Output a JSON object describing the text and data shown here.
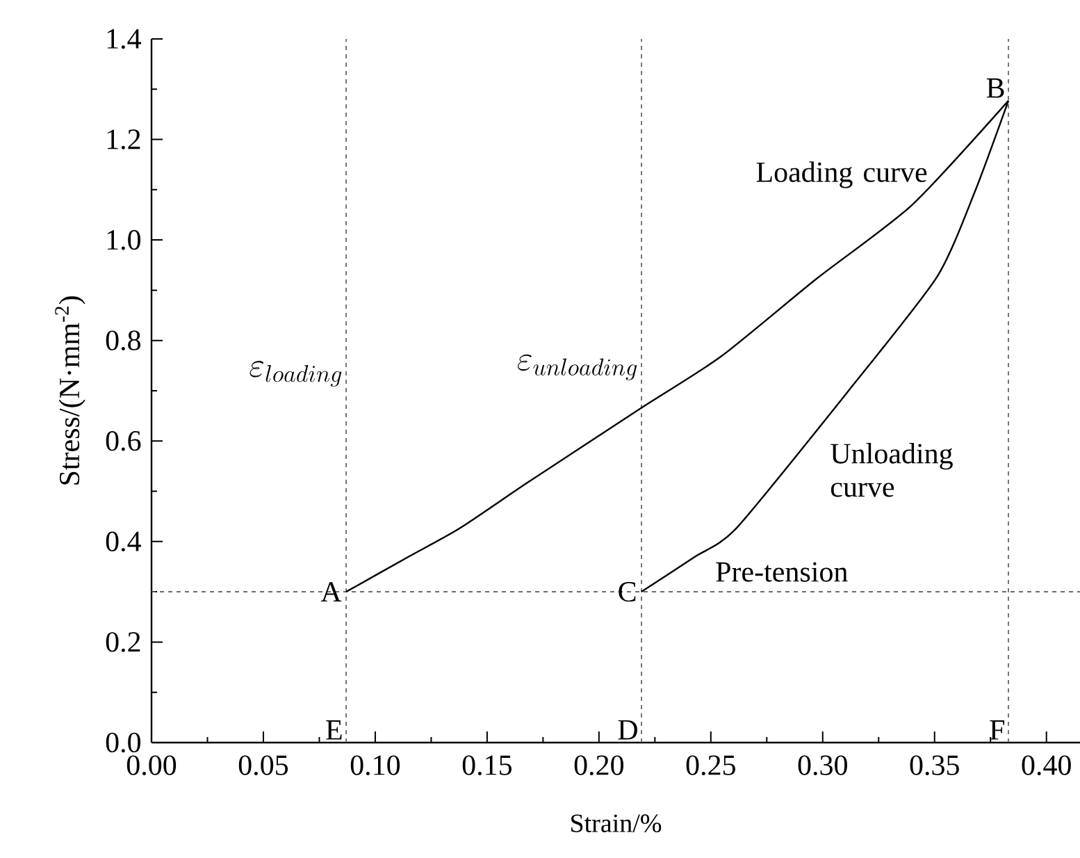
{
  "chart_data": {
    "type": "line",
    "xlabel": "Strain/%",
    "ylabel": "Stress/(N·mm$^{-2}$)",
    "xlim": [
      0,
      0.415
    ],
    "ylim": [
      0,
      1.4
    ],
    "xticks": [
      {
        "value": 0,
        "label": "0.00"
      },
      {
        "value": 0.05,
        "label": "0.05"
      },
      {
        "value": 0.1,
        "label": "0.10"
      },
      {
        "value": 0.15,
        "label": "0.15"
      },
      {
        "value": 0.2,
        "label": "0.20"
      },
      {
        "value": 0.25,
        "label": "0.25"
      },
      {
        "value": 0.3,
        "label": "0.30"
      },
      {
        "value": 0.35,
        "label": "0.35"
      },
      {
        "value": 0.4,
        "label": "0.40"
      }
    ],
    "yticks": [
      {
        "value": 0,
        "label": "0.0"
      },
      {
        "value": 0.2,
        "label": "0.2"
      },
      {
        "value": 0.4,
        "label": "0.4"
      },
      {
        "value": 0.6,
        "label": "0.6"
      },
      {
        "value": 0.8,
        "label": "0.8"
      },
      {
        "value": 1.0,
        "label": "1.0"
      },
      {
        "value": 1.2,
        "label": "1.2"
      },
      {
        "value": 1.4,
        "label": "1.4"
      }
    ],
    "series": [
      {
        "color": "#000000",
        "x": [
          0.087,
          0.115,
          0.138,
          0.169,
          0.219,
          0.2545,
          0.297,
          0.34,
          0.383
        ],
        "values": [
          0.3,
          0.37,
          0.427,
          0.52,
          0.666,
          0.768,
          0.922,
          1.07,
          1.277
        ]
      },
      {
        "color": "#000000",
        "x": [
          0.219,
          0.243,
          0.2615,
          0.311,
          0.351,
          0.368,
          0.383
        ],
        "values": [
          0.3,
          0.37,
          0.427,
          0.697,
          0.926,
          1.096,
          1.277
        ]
      }
    ],
    "ref_lines": [
      {
        "axis": "x",
        "value": 0.087,
        "label": "E",
        "line_style": "dashed",
        "color": "#555555"
      },
      {
        "axis": "x",
        "value": 0.219,
        "label": "D",
        "line_style": "dashed",
        "color": "#555555"
      },
      {
        "axis": "x",
        "value": 0.383,
        "label": "F",
        "line_style": "dashed",
        "color": "#555555"
      },
      {
        "axis": "y",
        "value": 0.3,
        "line_style": "dashed",
        "color": "#555555"
      }
    ],
    "annotations": [
      {
        "text": "A",
        "x": 0.087,
        "y": 0.3
      },
      {
        "text": "B",
        "x": 0.383,
        "y": 1.277
      },
      {
        "text": "C",
        "x": 0.219,
        "y": 0.3
      },
      "Loading curve",
      "Unloading curve",
      {
        "text": "Pre-tension",
        "x": 0.245,
        "y": 0.3
      },
      {
        "text": "\\varepsilon_{loading}",
        "x": 0.087,
        "y": 0.764
      },
      {
        "text": "\\varepsilon_{unloading}",
        "x": 0.219,
        "y": 0.777
      }
    ],
    "grid": false,
    "marker": "none",
    "line_style": "solid"
  }
}
